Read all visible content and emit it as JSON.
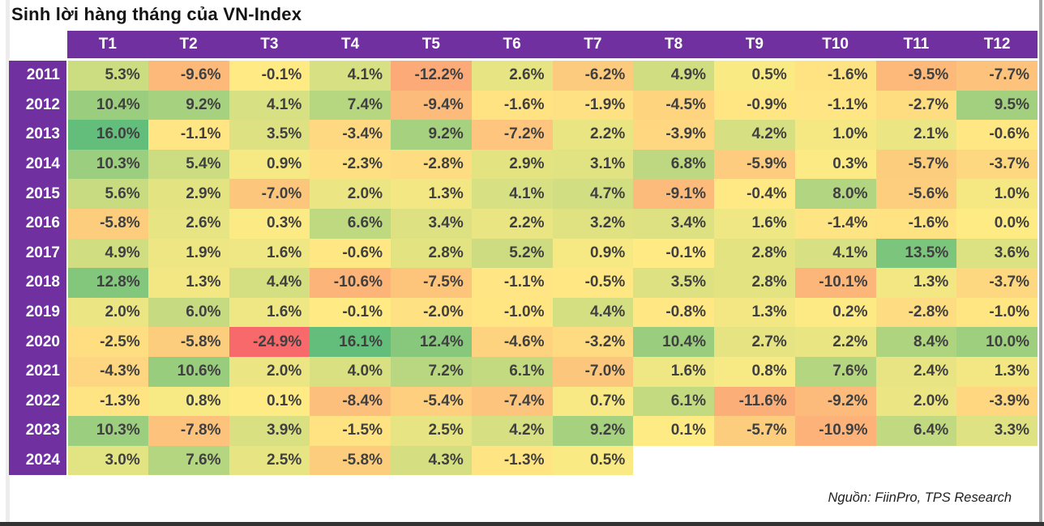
{
  "title": "Sinh lời hàng tháng của VN-Index",
  "source": "Nguồn: FiinPro, TPS Research",
  "colors": {
    "header_bg": "#7030A0",
    "header_text": "#ffffff",
    "cell_text": "#404040"
  },
  "chart_data": {
    "type": "heatmap",
    "title": "Sinh lời hàng tháng của VN-Index",
    "value_unit": "%",
    "columns": [
      "T1",
      "T2",
      "T3",
      "T4",
      "T5",
      "T6",
      "T7",
      "T8",
      "T9",
      "T10",
      "T11",
      "T12"
    ],
    "rows": [
      {
        "year": "2011",
        "values": [
          5.3,
          -9.6,
          -0.1,
          4.1,
          -12.2,
          2.6,
          -6.2,
          4.9,
          0.5,
          -1.6,
          -9.5,
          -7.7
        ]
      },
      {
        "year": "2012",
        "values": [
          10.4,
          9.2,
          4.1,
          7.4,
          -9.4,
          -1.6,
          -1.9,
          -4.5,
          -0.9,
          -1.1,
          -2.7,
          9.5
        ]
      },
      {
        "year": "2013",
        "values": [
          16.0,
          -1.1,
          3.5,
          -3.4,
          9.2,
          -7.2,
          2.2,
          -3.9,
          4.2,
          1.0,
          2.1,
          -0.6
        ]
      },
      {
        "year": "2014",
        "values": [
          10.3,
          5.4,
          0.9,
          -2.3,
          -2.8,
          2.9,
          3.1,
          6.8,
          -5.9,
          0.3,
          -5.7,
          -3.7
        ]
      },
      {
        "year": "2015",
        "values": [
          5.6,
          2.9,
          -7.0,
          2.0,
          1.3,
          4.1,
          4.7,
          -9.1,
          -0.4,
          8.0,
          -5.6,
          1.0
        ]
      },
      {
        "year": "2016",
        "values": [
          -5.8,
          2.6,
          0.3,
          6.6,
          3.4,
          2.2,
          3.2,
          3.4,
          1.6,
          -1.4,
          -1.6,
          0.0
        ]
      },
      {
        "year": "2017",
        "values": [
          4.9,
          1.9,
          1.6,
          -0.6,
          2.8,
          5.2,
          0.9,
          -0.1,
          2.8,
          4.1,
          13.5,
          3.6
        ]
      },
      {
        "year": "2018",
        "values": [
          12.8,
          1.3,
          4.4,
          -10.6,
          -7.5,
          -1.1,
          -0.5,
          3.5,
          2.8,
          -10.1,
          1.3,
          -3.7
        ]
      },
      {
        "year": "2019",
        "values": [
          2.0,
          6.0,
          1.6,
          -0.1,
          -2.0,
          -1.0,
          4.4,
          -0.8,
          1.3,
          0.2,
          -2.8,
          -1.0
        ]
      },
      {
        "year": "2020",
        "values": [
          -2.5,
          -5.8,
          -24.9,
          16.1,
          12.4,
          -4.6,
          -3.2,
          10.4,
          2.7,
          2.2,
          8.4,
          10.0
        ]
      },
      {
        "year": "2021",
        "values": [
          -4.3,
          10.6,
          2.0,
          4.0,
          7.2,
          6.1,
          -7.0,
          1.6,
          0.8,
          7.6,
          2.4,
          1.3
        ]
      },
      {
        "year": "2022",
        "values": [
          -1.3,
          0.8,
          0.1,
          -8.4,
          -5.4,
          -7.4,
          0.7,
          6.1,
          -11.6,
          -9.2,
          2.0,
          -3.9
        ]
      },
      {
        "year": "2023",
        "values": [
          10.3,
          -7.8,
          3.9,
          -1.5,
          2.5,
          4.2,
          9.2,
          0.1,
          -5.7,
          -10.9,
          6.4,
          3.3
        ]
      },
      {
        "year": "2024",
        "values": [
          3.0,
          7.6,
          2.5,
          -5.8,
          4.3,
          -1.3,
          0.5
        ]
      }
    ],
    "color_scale": {
      "min": -24.9,
      "mid": 0,
      "max": 16.1,
      "min_color": "#F8696B",
      "mid_color": "#FFEB84",
      "max_color": "#63BE7B"
    }
  }
}
